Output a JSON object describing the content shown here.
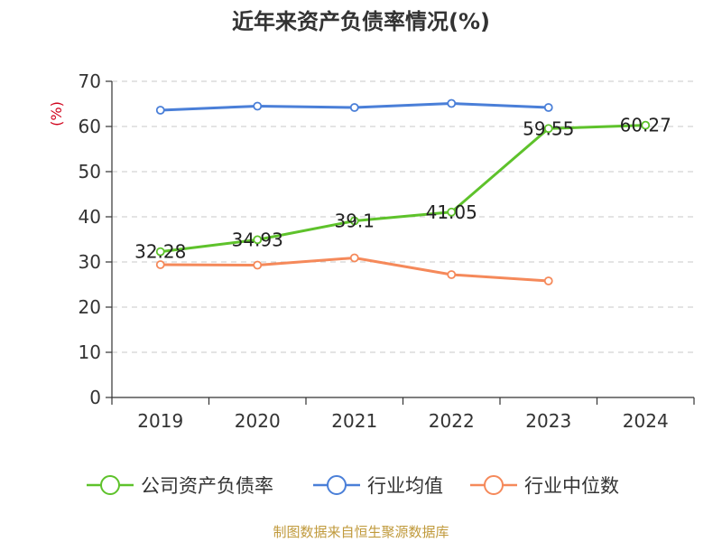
{
  "chart_data": {
    "type": "line",
    "title": "近年来资产负债率情况(%)",
    "ylabel": "(%)",
    "xlabel": "",
    "categories": [
      "2019",
      "2020",
      "2021",
      "2022",
      "2023",
      "2024"
    ],
    "ylim": [
      0,
      70
    ],
    "yticks": [
      0,
      10,
      20,
      30,
      40,
      50,
      60,
      70
    ],
    "grid": true,
    "legend_position": "bottom",
    "series": [
      {
        "name": "公司资产负债率",
        "color": "#5ec22b",
        "values": [
          32.28,
          34.93,
          39.1,
          41.05,
          59.55,
          60.27
        ],
        "data_labels": [
          "32.28",
          "34.93",
          "39.1",
          "41.05",
          "59.55",
          "60.27"
        ]
      },
      {
        "name": "行业均值",
        "color": "#4a7fd8",
        "values": [
          63.6,
          64.5,
          64.2,
          65.1,
          64.2,
          null
        ]
      },
      {
        "name": "行业中位数",
        "color": "#f5895a",
        "values": [
          29.4,
          29.3,
          30.9,
          27.2,
          25.8,
          null
        ]
      }
    ]
  },
  "source_text": "制图数据来自恒生聚源数据库",
  "source_color": "#c09a3c"
}
